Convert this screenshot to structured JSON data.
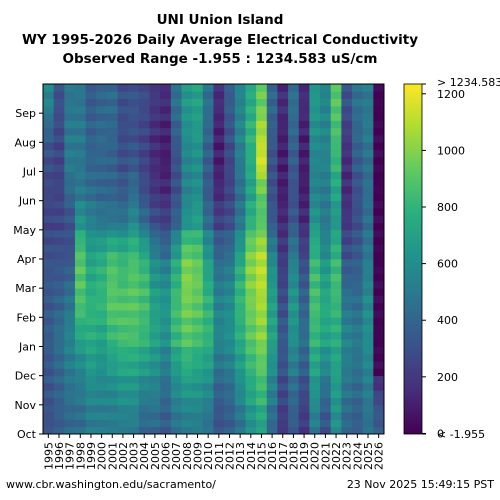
{
  "chart_data": {
    "type": "heatmap",
    "title_lines": [
      "UNI Union Island",
      "WY 1995-2026 Daily Average Electrical Conductivity",
      "Observed Range -1.955 : 1234.583 uS/cm"
    ],
    "x_categories": [
      "1995",
      "1996",
      "1997",
      "1998",
      "1999",
      "2000",
      "2001",
      "2002",
      "2003",
      "2004",
      "2005",
      "2006",
      "2007",
      "2008",
      "2009",
      "2010",
      "2011",
      "2012",
      "2013",
      "2014",
      "2015",
      "2016",
      "2017",
      "2018",
      "2019",
      "2020",
      "2021",
      "2022",
      "2023",
      "2024",
      "2025",
      "2026"
    ],
    "y_ticks": [
      "Oct",
      "Nov",
      "Dec",
      "Jan",
      "Feb",
      "Mar",
      "Apr",
      "May",
      "Jun",
      "Jul",
      "Aug",
      "Sep"
    ],
    "colorbar": {
      "min": -1.955,
      "max": 1234.583,
      "ticks": [
        0,
        200,
        400,
        600,
        800,
        1000,
        1200
      ],
      "max_label": "> 1234.583",
      "min_label": "< -1.955",
      "colormap": "viridis"
    },
    "monthly_ec_estimates": {
      "months": [
        "Oct",
        "Nov",
        "Dec",
        "Jan",
        "Feb",
        "Mar",
        "Apr",
        "May",
        "Jun",
        "Jul",
        "Aug",
        "Sep"
      ],
      "rows": [
        [
          300,
          320,
          330,
          350,
          340,
          330,
          300,
          250,
          260,
          280,
          350,
          550
        ],
        [
          350,
          380,
          400,
          450,
          400,
          350,
          300,
          260,
          250,
          250,
          260,
          300
        ],
        [
          400,
          450,
          500,
          550,
          500,
          420,
          300,
          300,
          400,
          500,
          500,
          480
        ],
        [
          420,
          480,
          550,
          700,
          850,
          900,
          900,
          650,
          500,
          480,
          500,
          480
        ],
        [
          500,
          550,
          650,
          750,
          800,
          750,
          700,
          550,
          450,
          400,
          380,
          350
        ],
        [
          500,
          550,
          600,
          700,
          800,
          800,
          750,
          500,
          400,
          400,
          420,
          400
        ],
        [
          500,
          550,
          650,
          800,
          900,
          900,
          850,
          500,
          400,
          380,
          400,
          420
        ],
        [
          500,
          600,
          700,
          850,
          900,
          850,
          800,
          500,
          350,
          300,
          280,
          300
        ],
        [
          500,
          600,
          700,
          850,
          900,
          900,
          850,
          600,
          450,
          350,
          300,
          320
        ],
        [
          400,
          500,
          650,
          800,
          850,
          850,
          750,
          450,
          300,
          250,
          250,
          280
        ],
        [
          400,
          500,
          600,
          700,
          700,
          650,
          550,
          300,
          200,
          150,
          150,
          200
        ],
        [
          350,
          400,
          500,
          600,
          650,
          600,
          450,
          250,
          150,
          100,
          100,
          150
        ],
        [
          450,
          550,
          650,
          800,
          850,
          800,
          700,
          400,
          300,
          300,
          350,
          450
        ],
        [
          500,
          600,
          750,
          900,
          950,
          1000,
          950,
          650,
          550,
          550,
          600,
          650
        ],
        [
          500,
          600,
          700,
          850,
          900,
          950,
          900,
          700,
          600,
          600,
          650,
          700
        ],
        [
          450,
          550,
          650,
          800,
          800,
          750,
          650,
          450,
          350,
          350,
          400,
          450
        ],
        [
          300,
          350,
          450,
          550,
          550,
          500,
          400,
          250,
          150,
          100,
          100,
          150
        ],
        [
          350,
          400,
          500,
          600,
          600,
          550,
          450,
          300,
          250,
          250,
          300,
          350
        ],
        [
          450,
          550,
          650,
          750,
          800,
          800,
          700,
          500,
          450,
          500,
          550,
          550
        ],
        [
          600,
          700,
          800,
          900,
          950,
          1000,
          1000,
          800,
          700,
          750,
          800,
          750
        ],
        [
          700,
          800,
          900,
          1000,
          1050,
          1100,
          1100,
          900,
          900,
          1150,
          1100,
          950
        ],
        [
          400,
          500,
          600,
          700,
          700,
          650,
          550,
          350,
          300,
          300,
          350,
          400
        ],
        [
          200,
          250,
          300,
          350,
          300,
          250,
          200,
          150,
          100,
          100,
          100,
          150
        ],
        [
          350,
          400,
          500,
          600,
          650,
          600,
          500,
          350,
          300,
          350,
          400,
          450
        ],
        [
          200,
          250,
          350,
          450,
          400,
          350,
          250,
          150,
          100,
          100,
          100,
          150
        ],
        [
          500,
          600,
          700,
          800,
          850,
          850,
          800,
          650,
          550,
          550,
          600,
          650
        ],
        [
          300,
          400,
          550,
          700,
          750,
          700,
          600,
          500,
          500,
          550,
          550,
          550
        ],
        [
          600,
          650,
          700,
          750,
          800,
          850,
          800,
          650,
          700,
          800,
          850,
          900
        ],
        [
          400,
          450,
          500,
          550,
          500,
          400,
          300,
          200,
          150,
          150,
          200,
          300
        ],
        [
          350,
          400,
          450,
          500,
          450,
          400,
          350,
          300,
          300,
          350,
          400,
          450
        ],
        [
          450,
          500,
          550,
          600,
          600,
          550,
          500,
          450,
          450,
          450,
          500,
          500
        ],
        [
          350,
          300,
          0,
          0,
          0,
          0,
          0,
          0,
          0,
          0,
          0,
          0
        ]
      ]
    }
  },
  "footer": {
    "left": "www.cbr.washington.edu/sacramento/",
    "right": "23 Nov 2025 15:49:15 PST"
  }
}
